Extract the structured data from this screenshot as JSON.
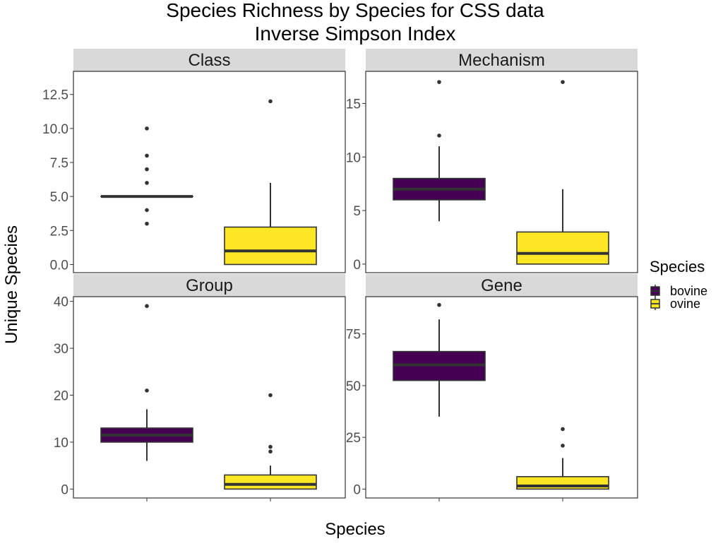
{
  "colors": {
    "bovine": "#440154",
    "ovine": "#FDE725",
    "strip": "#D9D9D9",
    "ink": "#333333"
  },
  "chart_data": {
    "type": "box",
    "title": "Species Richness by Species for CSS data",
    "subtitle": "Inverse Simpson Index",
    "xlabel": "Species",
    "ylabel": "Unique Species",
    "legend": {
      "title": "Species",
      "position": "right",
      "entries": [
        "bovine",
        "ovine"
      ]
    },
    "grid": false,
    "panels": [
      {
        "title": "Class",
        "ylim": [
          -0.6,
          14.2
        ],
        "yticks": [
          0,
          2.5,
          5,
          7.5,
          10,
          12.5
        ],
        "yticklabels": [
          "0.0",
          "2.5",
          "5.0",
          "7.5",
          "10.0",
          "12.5"
        ],
        "series": [
          {
            "name": "bovine",
            "q1": 5,
            "median": 5,
            "q3": 5,
            "whisker_low": 5,
            "whisker_high": 5,
            "outliers": [
              3,
              4,
              6,
              7,
              8,
              10
            ]
          },
          {
            "name": "ovine",
            "q1": 0,
            "median": 1,
            "q3": 2.75,
            "whisker_low": 0,
            "whisker_high": 6,
            "outliers": [
              12
            ]
          }
        ]
      },
      {
        "title": "Mechanism",
        "ylim": [
          -0.8,
          18
        ],
        "yticks": [
          0,
          5,
          10,
          15
        ],
        "yticklabels": [
          "0",
          "5",
          "10",
          "15"
        ],
        "series": [
          {
            "name": "bovine",
            "q1": 6,
            "median": 7,
            "q3": 8,
            "whisker_low": 4,
            "whisker_high": 11,
            "outliers": [
              12,
              17
            ]
          },
          {
            "name": "ovine",
            "q1": 0,
            "median": 1,
            "q3": 3,
            "whisker_low": 0,
            "whisker_high": 7,
            "outliers": [
              17
            ]
          }
        ]
      },
      {
        "title": "Group",
        "ylim": [
          -1.9,
          41
        ],
        "yticks": [
          0,
          10,
          20,
          30,
          40
        ],
        "yticklabels": [
          "0",
          "10",
          "20",
          "30",
          "40"
        ],
        "series": [
          {
            "name": "bovine",
            "q1": 10,
            "median": 11.5,
            "q3": 13,
            "whisker_low": 6,
            "whisker_high": 17,
            "outliers": [
              21,
              39
            ]
          },
          {
            "name": "ovine",
            "q1": 0,
            "median": 1,
            "q3": 3,
            "whisker_low": 0,
            "whisker_high": 5,
            "outliers": [
              8,
              9,
              20
            ]
          }
        ]
      },
      {
        "title": "Gene",
        "ylim": [
          -4.3,
          93
        ],
        "yticks": [
          0,
          25,
          50,
          75
        ],
        "yticklabels": [
          "0",
          "25",
          "50",
          "75"
        ],
        "series": [
          {
            "name": "bovine",
            "q1": 52.5,
            "median": 60,
            "q3": 66.5,
            "whisker_low": 35,
            "whisker_high": 82,
            "outliers": [
              89
            ]
          },
          {
            "name": "ovine",
            "q1": 0,
            "median": 1.5,
            "q3": 6,
            "whisker_low": 0,
            "whisker_high": 15,
            "outliers": [
              21,
              29
            ]
          }
        ]
      }
    ]
  }
}
